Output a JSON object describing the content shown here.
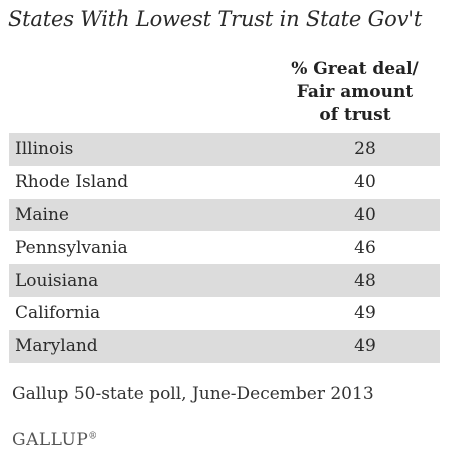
{
  "chart_data": {
    "type": "table",
    "title": "States With Lowest Trust in State Gov't",
    "column_header": [
      "% Great deal/",
      "Fair amount",
      "of trust"
    ],
    "rows": [
      {
        "state": "Illinois",
        "value": 28
      },
      {
        "state": "Rhode Island",
        "value": 40
      },
      {
        "state": "Maine",
        "value": 40
      },
      {
        "state": "Pennsylvania",
        "value": 46
      },
      {
        "state": "Louisiana",
        "value": 48
      },
      {
        "state": "California",
        "value": 49
      },
      {
        "state": "Maryland",
        "value": 49
      }
    ],
    "source": "Gallup 50-state poll, June-December 2013"
  },
  "branding": {
    "logo_text": "GALLUP",
    "logo_mark": "®"
  },
  "colors": {
    "row_shade": "#dcdcdc",
    "text": "#2a2a2a"
  }
}
